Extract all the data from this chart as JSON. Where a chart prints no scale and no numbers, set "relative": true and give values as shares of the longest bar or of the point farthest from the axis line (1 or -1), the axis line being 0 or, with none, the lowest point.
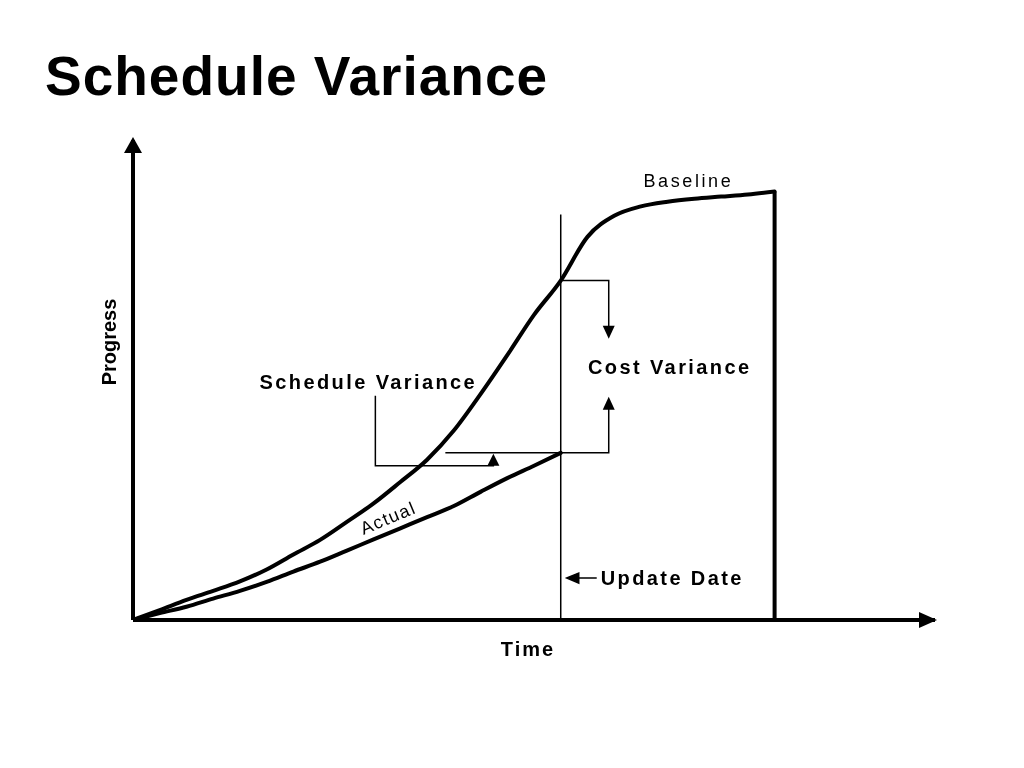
{
  "chart_data": {
    "type": "line",
    "title": "Schedule Variance",
    "xlabel": "Time",
    "ylabel": "Progress",
    "relative": true,
    "categories": [
      null,
      null,
      null,
      null,
      null,
      null,
      null,
      null,
      null,
      null,
      null,
      null,
      null,
      null,
      null,
      null,
      null,
      null,
      null,
      null,
      null,
      null,
      null,
      null,
      null
    ],
    "series": [
      {
        "name": "Baseline",
        "color": "#000000",
        "values": [
          0,
          0.023,
          0.047,
          0.068,
          0.09,
          0.118,
          0.153,
          0.187,
          0.229,
          0.272,
          0.322,
          0.374,
          0.442,
          0.527,
          0.618,
          0.712,
          0.792,
          0.894,
          0.943,
          0.965,
          0.976,
          0.983,
          0.988,
          0.993,
          1
        ]
      },
      {
        "name": "Actual",
        "color": "#000000",
        "values": [
          0,
          0.016,
          0.031,
          0.05,
          0.068,
          0.089,
          0.113,
          0.136,
          0.162,
          0.188,
          0.214,
          0.24,
          0.266,
          0.299,
          0.331,
          0.36,
          0.39,
          null,
          null,
          null,
          null,
          null,
          null,
          null,
          null
        ]
      }
    ],
    "annotations": [
      "Schedule Variance",
      "Cost Variance",
      "Update Date"
    ]
  }
}
